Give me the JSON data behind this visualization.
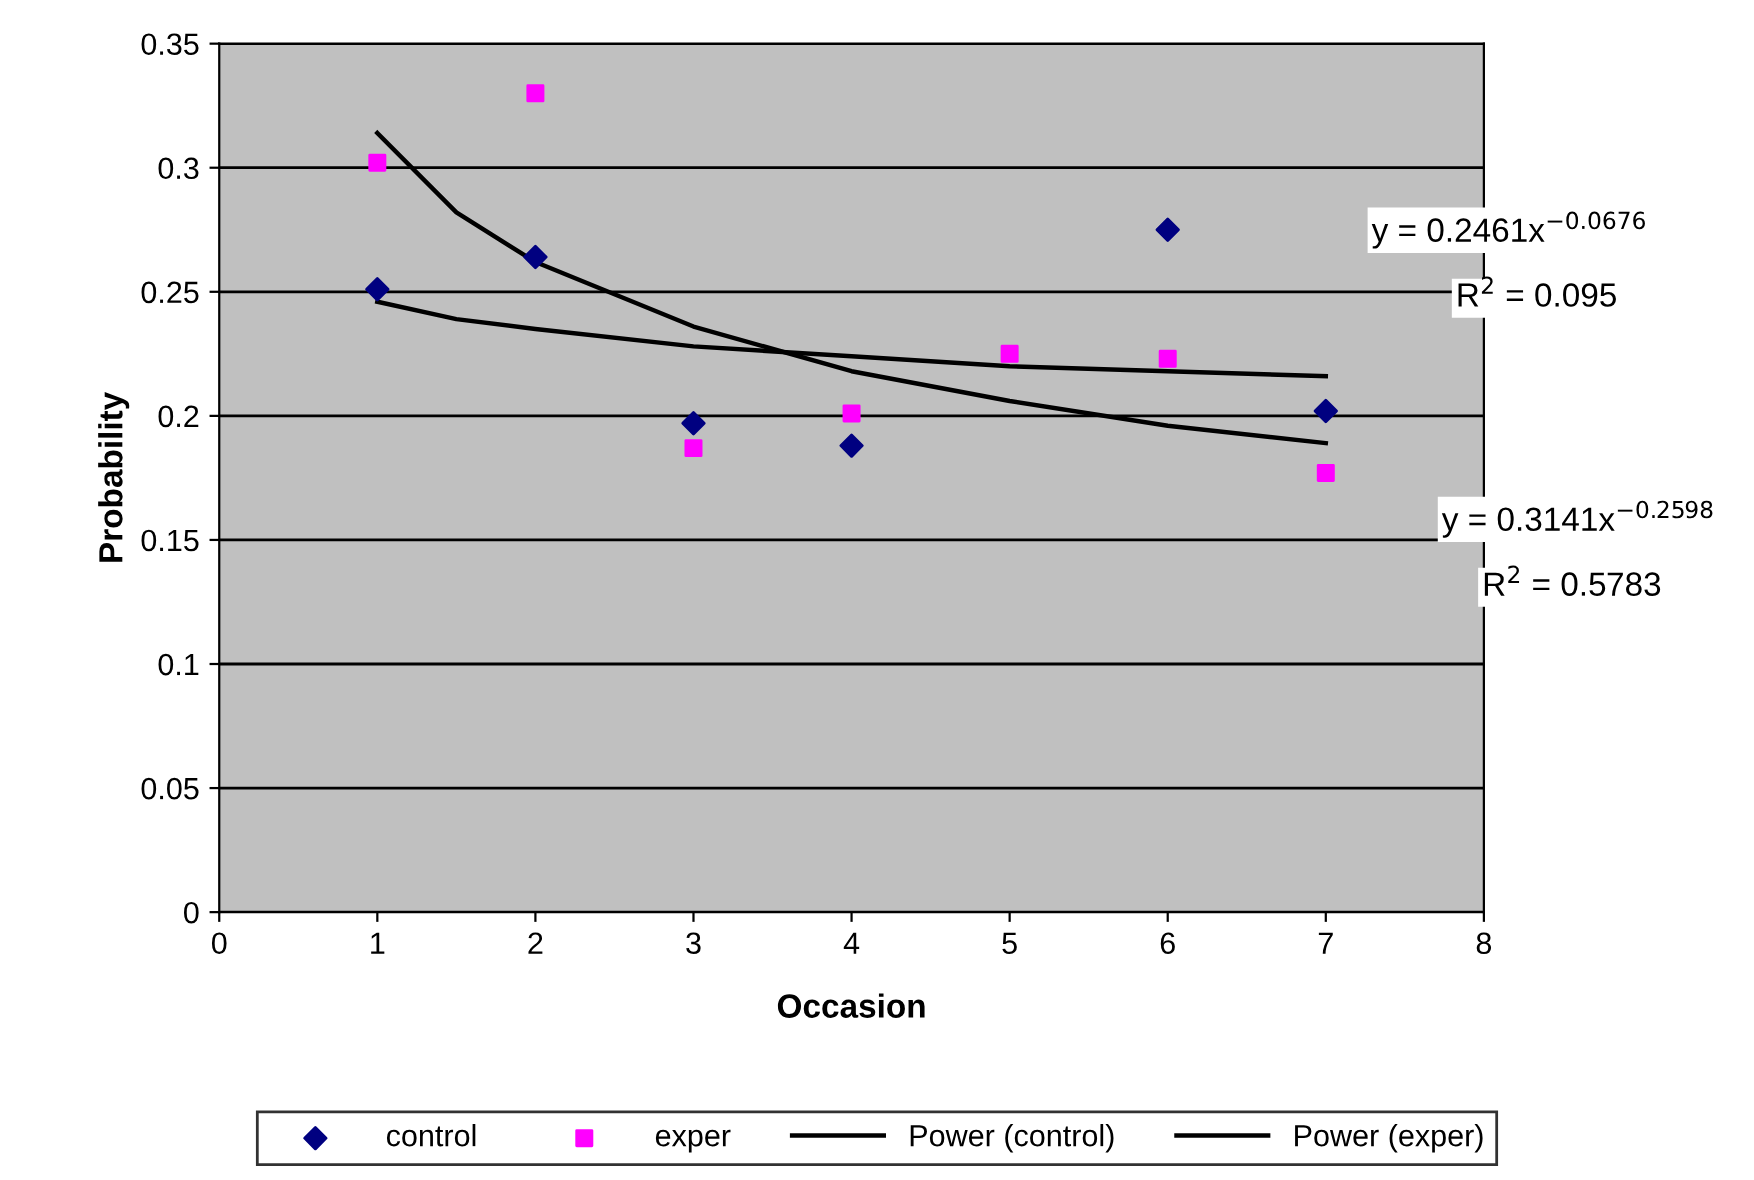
{
  "chart_data": {
    "type": "scatter",
    "xlabel": "Occasion",
    "ylabel": "Probability",
    "xlim": [
      0,
      8
    ],
    "xticks": [
      0,
      1,
      2,
      3,
      4,
      5,
      6,
      7,
      8
    ],
    "ylim": [
      0,
      0.35
    ],
    "yticks": [
      0,
      0.05,
      0.1,
      0.15,
      0.2,
      0.25,
      0.3,
      0.35
    ],
    "grid": "y",
    "legend": "bottom",
    "series": [
      {
        "name": "control",
        "marker": "diamond",
        "color": "#000080",
        "x": [
          1,
          2,
          3,
          4,
          5,
          6,
          7
        ],
        "values": [
          0.251,
          0.264,
          0.197,
          0.188,
          null,
          0.275,
          0.202
        ]
      },
      {
        "name": "exper",
        "marker": "square",
        "color": "#ff00ff",
        "x": [
          1,
          2,
          3,
          4,
          5,
          6,
          7
        ],
        "values": [
          0.302,
          0.33,
          0.187,
          0.201,
          0.225,
          0.223,
          0.177
        ]
      },
      {
        "name": "Power (control)",
        "type": "line",
        "color": "#000000",
        "x": [
          1,
          1.5,
          2,
          3,
          4,
          5,
          6,
          7
        ],
        "values": [
          0.246,
          0.239,
          0.235,
          0.228,
          0.224,
          0.22,
          0.218,
          0.216
        ]
      },
      {
        "name": "Power (exper)",
        "type": "line",
        "color": "#000000",
        "x": [
          1,
          1.5,
          2,
          3,
          4,
          5,
          6,
          7
        ],
        "values": [
          0.314,
          0.282,
          0.262,
          0.236,
          0.218,
          0.206,
          0.196,
          0.189
        ]
      }
    ],
    "annotations": [
      "y = 0.2461x$^{−0.0676}$",
      "R$^{2}$ = 0.095",
      "y = 0.3141x$^{−0.2598}$",
      "R$^{2}$ = 0.5783"
    ]
  }
}
